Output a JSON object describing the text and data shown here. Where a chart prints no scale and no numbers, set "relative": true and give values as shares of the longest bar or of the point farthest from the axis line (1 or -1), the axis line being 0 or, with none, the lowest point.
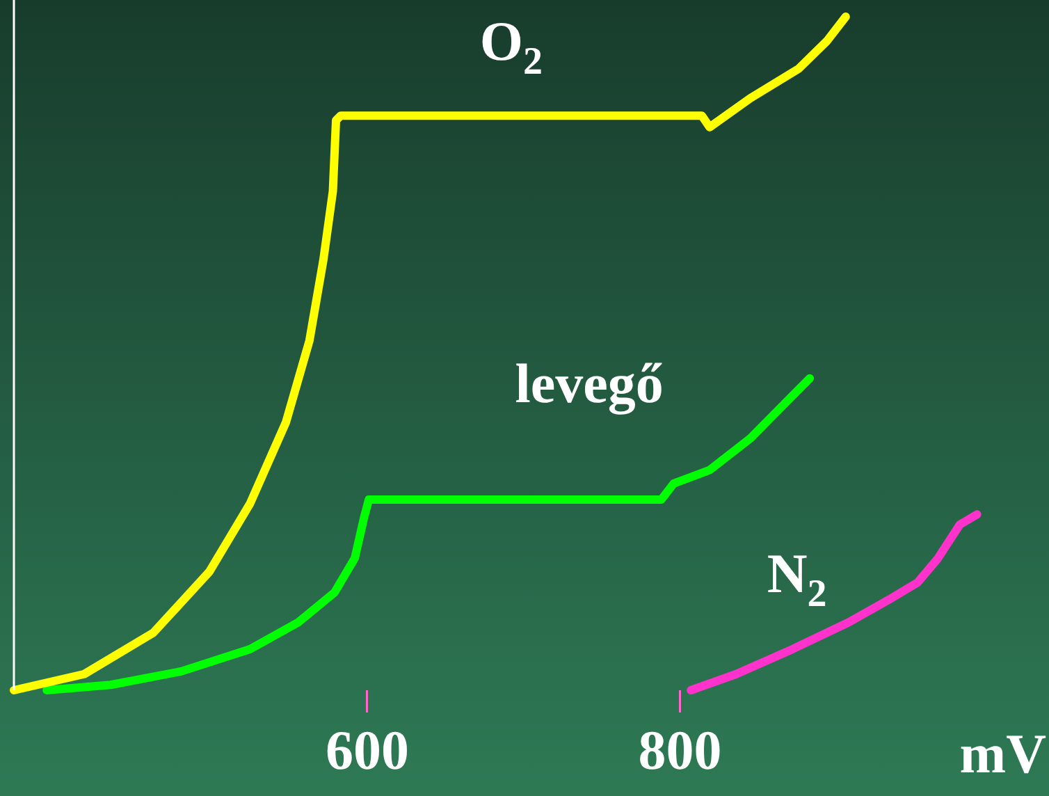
{
  "chart_data": {
    "type": "line",
    "relative": true,
    "xlabel": "mV",
    "xlim": [
      374,
      1036
    ],
    "xticks": [
      600,
      800
    ],
    "tick_labels": "x",
    "grid": false,
    "legend": false,
    "marker": "none",
    "line_style": "solid",
    "series": [
      {
        "name": "O$_{2}$",
        "color": "#ffff00",
        "x": [
          374,
          419,
          463,
          499,
          525,
          548,
          563,
          572,
          578,
          580,
          583,
          814,
          819,
          845,
          876,
          894,
          906
        ],
        "values": [
          0,
          0.024,
          0.085,
          0.176,
          0.277,
          0.398,
          0.519,
          0.64,
          0.741,
          0.846,
          0.853,
          0.853,
          0.836,
          0.879,
          0.923,
          0.964,
          1
        ]
      },
      {
        "name": "levegő",
        "color": "#00ff00",
        "x": [
          395,
          436,
          481,
          525,
          556,
          579,
          592,
          598,
          601,
          788,
          796,
          819,
          845,
          868,
          883
        ],
        "values": [
          0,
          0.008,
          0.028,
          0.061,
          0.101,
          0.145,
          0.196,
          0.257,
          0.283,
          0.283,
          0.307,
          0.327,
          0.374,
          0.428,
          0.463
        ]
      },
      {
        "name": "N$_{2}$",
        "color": "#ff33cc",
        "x": [
          807,
          836,
          872,
          908,
          934,
          952,
          965,
          979,
          990
        ],
        "values": [
          0,
          0.024,
          0.061,
          0.101,
          0.135,
          0.16,
          0.196,
          0.246,
          0.261
        ]
      }
    ]
  }
}
